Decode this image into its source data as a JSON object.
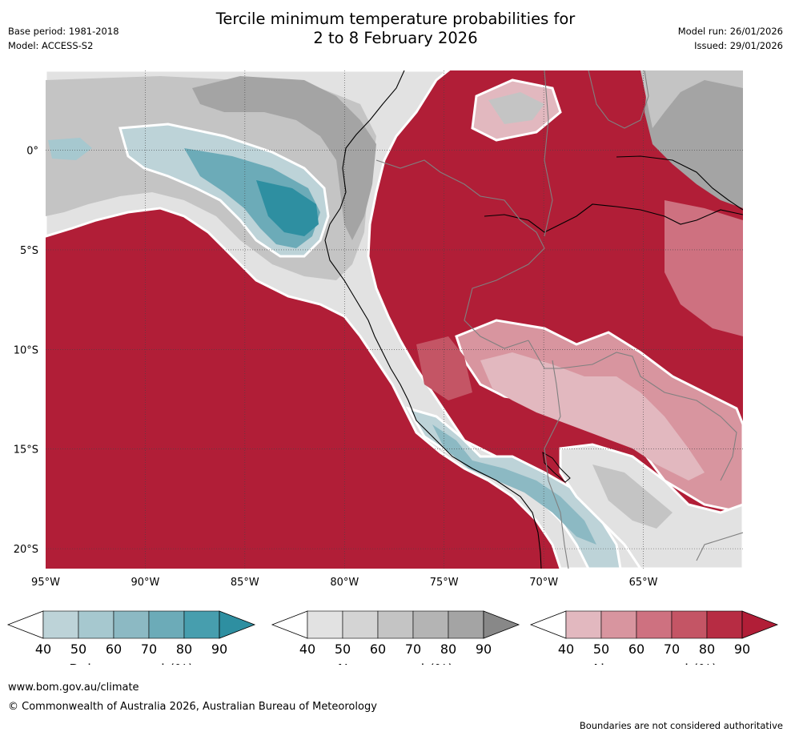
{
  "header": {
    "title_line1": "Tercile minimum temperature probabilities for",
    "title_line2": "2 to 8 February 2026",
    "base_period": "Base period: 1981-2018",
    "model": "Model: ACCESS-S2",
    "model_run": "Model run: 26/01/2026",
    "issued": "Issued: 29/01/2026"
  },
  "map": {
    "lon_range": [
      -95,
      -60
    ],
    "lat_range": [
      -21,
      4
    ],
    "lon_ticks": [
      {
        "value": -95,
        "label": "95°W"
      },
      {
        "value": -90,
        "label": "90°W"
      },
      {
        "value": -85,
        "label": "85°W"
      },
      {
        "value": -80,
        "label": "80°W"
      },
      {
        "value": -75,
        "label": "75°W"
      },
      {
        "value": -70,
        "label": "70°W"
      },
      {
        "value": -65,
        "label": "65°W"
      }
    ],
    "lat_ticks": [
      {
        "value": 0,
        "label": "0°"
      },
      {
        "value": -5,
        "label": "5°S"
      },
      {
        "value": -10,
        "label": "10°S"
      },
      {
        "value": -15,
        "label": "15°S"
      },
      {
        "value": -20,
        "label": "20°S"
      }
    ],
    "colors": {
      "ocean_above": "#b11e37",
      "above_80": "#b72c43",
      "above_70": "#c45565",
      "above_60": "#ce7180",
      "above_50": "#d8959f",
      "above_40": "#e2b8bf",
      "near_40": "#e2e2e2",
      "near_50": "#d4d4d4",
      "near_60": "#c4c4c4",
      "near_70": "#b4b4b4",
      "near_80": "#a4a4a4",
      "below_40": "#bdd3d8",
      "below_50": "#a6c8cf",
      "below_60": "#8cb9c3",
      "below_70": "#6cabb8",
      "below_80": "#479eae",
      "below_90": "#2e8fa1",
      "contour": "#ffffff",
      "coast": "#000000",
      "border": "#808080",
      "grid": "#444444"
    }
  },
  "colorbars": [
    {
      "title": "Below normal (%)",
      "labels": [
        "40",
        "50",
        "60",
        "70",
        "80",
        "90"
      ],
      "colors": [
        "#bdd3d8",
        "#a6c8cf",
        "#8cb9c3",
        "#6cabb8",
        "#479eae",
        "#2e8fa1"
      ]
    },
    {
      "title": "Near normal (%)",
      "labels": [
        "40",
        "50",
        "60",
        "70",
        "80",
        "90"
      ],
      "colors": [
        "#e2e2e2",
        "#d4d4d4",
        "#c4c4c4",
        "#b4b4b4",
        "#a4a4a4",
        "#888888"
      ]
    },
    {
      "title": "Above normal (%)",
      "labels": [
        "40",
        "50",
        "60",
        "70",
        "80",
        "90"
      ],
      "colors": [
        "#e2b8bf",
        "#d8959f",
        "#ce7180",
        "#c45565",
        "#b72c43",
        "#b11e37"
      ]
    }
  ],
  "footer": {
    "url": "www.bom.gov.au/climate",
    "copyright": "© Commonwealth of Australia 2026, Australian Bureau of Meteorology",
    "disclaimer": "Boundaries are not considered authoritative"
  }
}
